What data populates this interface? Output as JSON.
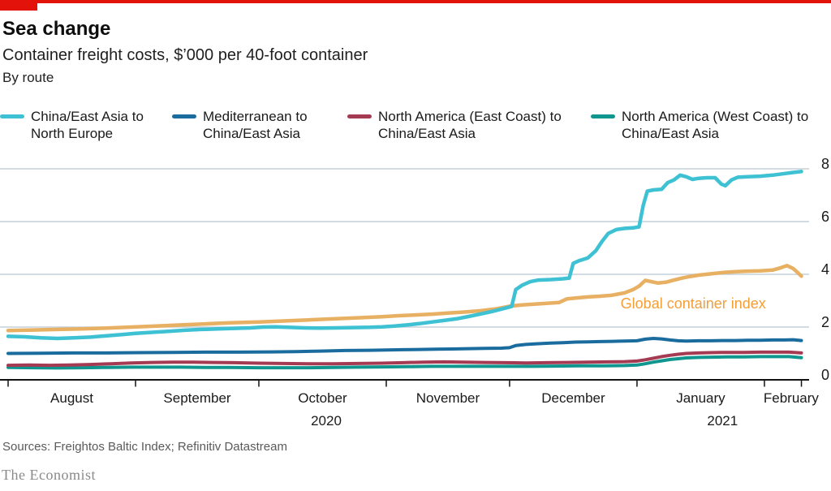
{
  "header": {
    "title": "Sea change",
    "subtitle": "Container freight costs, $’000 per 40-foot container",
    "byline": "By route"
  },
  "legend": {
    "items": [
      {
        "label_line1": "China/East Asia to",
        "label_line2": "North Europe",
        "color": "#3DC1D3"
      },
      {
        "label_line1": "Mediterranean to",
        "label_line2": "China/East Asia",
        "color": "#1A6C9E"
      },
      {
        "label_line1": "North America (East Coast) to",
        "label_line2": "China/East Asia",
        "color": "#A43B52"
      },
      {
        "label_line1": "North America (West Coast) to",
        "label_line2": "China/East Asia",
        "color": "#0F968F"
      }
    ]
  },
  "chart_data": {
    "type": "line",
    "title": "Container freight costs, $'000 per 40-foot container, by route",
    "x_unit": "days since 1 Aug 2020",
    "x_range": [
      0,
      193
    ],
    "ylim": [
      0,
      8
    ],
    "yticks": [
      0,
      2,
      4,
      6,
      8
    ],
    "y_tick_labels": [
      "0",
      "2",
      "4",
      "6",
      "8"
    ],
    "x_tick_days": [
      0,
      31,
      61,
      92,
      122,
      153,
      184,
      193
    ],
    "x_label_days": [
      15.5,
      46,
      76.5,
      107,
      137.5,
      168.5,
      190.5
    ],
    "x_tick_labels": [
      "August",
      "September",
      "October",
      "November",
      "December",
      "January",
      "February"
    ],
    "year_labels": [
      {
        "text": "2020",
        "day": 77.4
      },
      {
        "text": "2021",
        "day": 173.8
      }
    ],
    "annotation": {
      "text": "Global container index",
      "color": "#F49E37",
      "day": 149,
      "value": 2.92
    },
    "grid": true,
    "legend_position": "top",
    "series": [
      {
        "name": "Global container index",
        "color": "#E7B062",
        "width": 4.5,
        "points": [
          [
            0,
            1.87
          ],
          [
            6,
            1.89
          ],
          [
            12,
            1.91
          ],
          [
            18,
            1.93
          ],
          [
            24,
            1.96
          ],
          [
            30,
            2.0
          ],
          [
            36,
            2.04
          ],
          [
            42,
            2.08
          ],
          [
            48,
            2.12
          ],
          [
            54,
            2.16
          ],
          [
            61,
            2.19
          ],
          [
            67,
            2.23
          ],
          [
            73,
            2.27
          ],
          [
            79,
            2.31
          ],
          [
            85,
            2.35
          ],
          [
            91,
            2.39
          ],
          [
            95,
            2.43
          ],
          [
            99,
            2.46
          ],
          [
            103,
            2.49
          ],
          [
            107,
            2.53
          ],
          [
            111,
            2.57
          ],
          [
            115,
            2.62
          ],
          [
            119,
            2.7
          ],
          [
            122,
            2.79
          ],
          [
            125,
            2.84
          ],
          [
            128,
            2.87
          ],
          [
            131,
            2.9
          ],
          [
            134,
            2.93
          ],
          [
            136,
            3.07
          ],
          [
            138,
            3.1
          ],
          [
            141,
            3.14
          ],
          [
            144,
            3.17
          ],
          [
            147,
            3.21
          ],
          [
            150,
            3.3
          ],
          [
            152,
            3.42
          ],
          [
            153.5,
            3.55
          ],
          [
            155,
            3.77
          ],
          [
            156.5,
            3.72
          ],
          [
            158,
            3.67
          ],
          [
            160,
            3.7
          ],
          [
            162,
            3.78
          ],
          [
            164,
            3.86
          ],
          [
            166,
            3.92
          ],
          [
            168,
            3.97
          ],
          [
            171,
            4.02
          ],
          [
            174,
            4.07
          ],
          [
            177,
            4.1
          ],
          [
            180,
            4.12
          ],
          [
            183,
            4.13
          ],
          [
            186,
            4.16
          ],
          [
            188,
            4.25
          ],
          [
            189.5,
            4.33
          ],
          [
            191,
            4.22
          ],
          [
            192,
            4.08
          ],
          [
            193,
            3.93
          ]
        ]
      },
      {
        "name": "North America (West Coast) to China/East Asia",
        "color": "#0F968F",
        "width": 4,
        "points": [
          [
            0,
            0.47
          ],
          [
            6,
            0.46
          ],
          [
            12,
            0.45
          ],
          [
            18,
            0.46
          ],
          [
            24,
            0.47
          ],
          [
            30,
            0.48
          ],
          [
            36,
            0.48
          ],
          [
            42,
            0.48
          ],
          [
            48,
            0.47
          ],
          [
            54,
            0.47
          ],
          [
            61,
            0.46
          ],
          [
            67,
            0.46
          ],
          [
            73,
            0.46
          ],
          [
            79,
            0.47
          ],
          [
            85,
            0.48
          ],
          [
            91,
            0.49
          ],
          [
            97,
            0.5
          ],
          [
            103,
            0.51
          ],
          [
            109,
            0.51
          ],
          [
            115,
            0.51
          ],
          [
            121,
            0.51
          ],
          [
            127,
            0.51
          ],
          [
            133,
            0.52
          ],
          [
            139,
            0.53
          ],
          [
            145,
            0.53
          ],
          [
            150,
            0.54
          ],
          [
            153,
            0.56
          ],
          [
            155,
            0.61
          ],
          [
            157,
            0.67
          ],
          [
            159,
            0.72
          ],
          [
            161,
            0.77
          ],
          [
            163,
            0.8
          ],
          [
            165,
            0.83
          ],
          [
            168,
            0.85
          ],
          [
            171,
            0.86
          ],
          [
            175,
            0.87
          ],
          [
            179,
            0.87
          ],
          [
            183,
            0.88
          ],
          [
            187,
            0.88
          ],
          [
            190,
            0.88
          ],
          [
            193,
            0.84
          ]
        ]
      },
      {
        "name": "North America (East Coast) to China/East Asia",
        "color": "#A43B52",
        "width": 4,
        "points": [
          [
            0,
            0.55
          ],
          [
            5,
            0.56
          ],
          [
            10,
            0.55
          ],
          [
            15,
            0.56
          ],
          [
            20,
            0.58
          ],
          [
            25,
            0.61
          ],
          [
            30,
            0.64
          ],
          [
            35,
            0.66
          ],
          [
            40,
            0.67
          ],
          [
            45,
            0.67
          ],
          [
            50,
            0.66
          ],
          [
            55,
            0.65
          ],
          [
            61,
            0.63
          ],
          [
            67,
            0.62
          ],
          [
            73,
            0.61
          ],
          [
            79,
            0.61
          ],
          [
            85,
            0.62
          ],
          [
            91,
            0.63
          ],
          [
            96,
            0.65
          ],
          [
            101,
            0.67
          ],
          [
            106,
            0.68
          ],
          [
            111,
            0.67
          ],
          [
            116,
            0.66
          ],
          [
            121,
            0.65
          ],
          [
            126,
            0.64
          ],
          [
            131,
            0.65
          ],
          [
            136,
            0.66
          ],
          [
            141,
            0.67
          ],
          [
            146,
            0.68
          ],
          [
            150,
            0.69
          ],
          [
            153,
            0.71
          ],
          [
            155,
            0.76
          ],
          [
            157,
            0.82
          ],
          [
            159,
            0.88
          ],
          [
            161,
            0.93
          ],
          [
            163,
            0.97
          ],
          [
            165,
            1.0
          ],
          [
            168,
            1.02
          ],
          [
            171,
            1.03
          ],
          [
            175,
            1.04
          ],
          [
            179,
            1.04
          ],
          [
            183,
            1.05
          ],
          [
            187,
            1.05
          ],
          [
            190,
            1.05
          ],
          [
            193,
            1.02
          ]
        ]
      },
      {
        "name": "Mediterranean to China/East Asia",
        "color": "#1A6C9E",
        "width": 4,
        "points": [
          [
            0,
            1.0
          ],
          [
            8,
            1.01
          ],
          [
            16,
            1.02
          ],
          [
            24,
            1.02
          ],
          [
            32,
            1.03
          ],
          [
            40,
            1.04
          ],
          [
            48,
            1.05
          ],
          [
            56,
            1.05
          ],
          [
            64,
            1.06
          ],
          [
            70,
            1.07
          ],
          [
            76,
            1.09
          ],
          [
            82,
            1.11
          ],
          [
            88,
            1.12
          ],
          [
            92,
            1.13
          ],
          [
            96,
            1.14
          ],
          [
            100,
            1.15
          ],
          [
            104,
            1.16
          ],
          [
            108,
            1.17
          ],
          [
            112,
            1.18
          ],
          [
            116,
            1.19
          ],
          [
            120,
            1.2
          ],
          [
            122,
            1.22
          ],
          [
            123.5,
            1.3
          ],
          [
            126,
            1.34
          ],
          [
            129,
            1.37
          ],
          [
            132,
            1.39
          ],
          [
            135,
            1.41
          ],
          [
            138,
            1.43
          ],
          [
            141,
            1.44
          ],
          [
            144,
            1.45
          ],
          [
            147,
            1.46
          ],
          [
            150,
            1.47
          ],
          [
            153,
            1.48
          ],
          [
            155,
            1.54
          ],
          [
            157,
            1.57
          ],
          [
            159,
            1.55
          ],
          [
            161,
            1.51
          ],
          [
            163,
            1.48
          ],
          [
            165,
            1.47
          ],
          [
            168,
            1.48
          ],
          [
            171,
            1.48
          ],
          [
            174,
            1.49
          ],
          [
            177,
            1.49
          ],
          [
            180,
            1.5
          ],
          [
            183,
            1.5
          ],
          [
            186,
            1.51
          ],
          [
            189,
            1.51
          ],
          [
            191,
            1.52
          ],
          [
            193,
            1.49
          ]
        ]
      },
      {
        "name": "China/East Asia to North Europe",
        "color": "#3DC1D3",
        "width": 4.5,
        "points": [
          [
            0,
            1.65
          ],
          [
            4,
            1.63
          ],
          [
            8,
            1.59
          ],
          [
            12,
            1.57
          ],
          [
            16,
            1.59
          ],
          [
            20,
            1.62
          ],
          [
            24,
            1.67
          ],
          [
            28,
            1.72
          ],
          [
            31,
            1.76
          ],
          [
            35,
            1.8
          ],
          [
            39,
            1.84
          ],
          [
            43,
            1.88
          ],
          [
            47,
            1.91
          ],
          [
            51,
            1.93
          ],
          [
            55,
            1.95
          ],
          [
            59,
            1.97
          ],
          [
            62,
            2.0
          ],
          [
            65,
            2.01
          ],
          [
            68,
            1.99
          ],
          [
            72,
            1.97
          ],
          [
            76,
            1.96
          ],
          [
            80,
            1.97
          ],
          [
            84,
            1.98
          ],
          [
            88,
            1.99
          ],
          [
            91,
            2.01
          ],
          [
            94,
            2.04
          ],
          [
            97,
            2.08
          ],
          [
            100,
            2.13
          ],
          [
            103,
            2.19
          ],
          [
            106,
            2.25
          ],
          [
            109,
            2.31
          ],
          [
            112,
            2.4
          ],
          [
            115,
            2.5
          ],
          [
            118,
            2.6
          ],
          [
            121,
            2.72
          ],
          [
            122.5,
            2.78
          ],
          [
            123.5,
            3.42
          ],
          [
            125,
            3.58
          ],
          [
            127,
            3.72
          ],
          [
            129,
            3.78
          ],
          [
            132,
            3.8
          ],
          [
            135,
            3.83
          ],
          [
            136.5,
            3.86
          ],
          [
            137.5,
            4.42
          ],
          [
            139,
            4.52
          ],
          [
            141,
            4.62
          ],
          [
            143,
            4.9
          ],
          [
            144.5,
            5.25
          ],
          [
            146,
            5.55
          ],
          [
            148,
            5.7
          ],
          [
            150,
            5.74
          ],
          [
            152,
            5.76
          ],
          [
            153.5,
            5.8
          ],
          [
            154.5,
            6.6
          ],
          [
            155.5,
            7.15
          ],
          [
            157,
            7.2
          ],
          [
            159,
            7.22
          ],
          [
            160.5,
            7.48
          ],
          [
            162,
            7.58
          ],
          [
            163.5,
            7.76
          ],
          [
            165,
            7.7
          ],
          [
            166.5,
            7.6
          ],
          [
            168,
            7.64
          ],
          [
            170,
            7.66
          ],
          [
            172,
            7.66
          ],
          [
            173.5,
            7.42
          ],
          [
            174.5,
            7.36
          ],
          [
            176,
            7.58
          ],
          [
            177.5,
            7.68
          ],
          [
            180,
            7.7
          ],
          [
            183,
            7.72
          ],
          [
            186,
            7.76
          ],
          [
            189,
            7.82
          ],
          [
            191,
            7.86
          ],
          [
            193,
            7.9
          ]
        ]
      }
    ]
  },
  "footer": {
    "sources": "Sources: Freightos Baltic Index; Refinitiv Datastream",
    "brand": "The Economist"
  },
  "colors": {
    "accent_red": "#E3120B",
    "gridline": "#C4D0D9",
    "axis": "#121212"
  }
}
